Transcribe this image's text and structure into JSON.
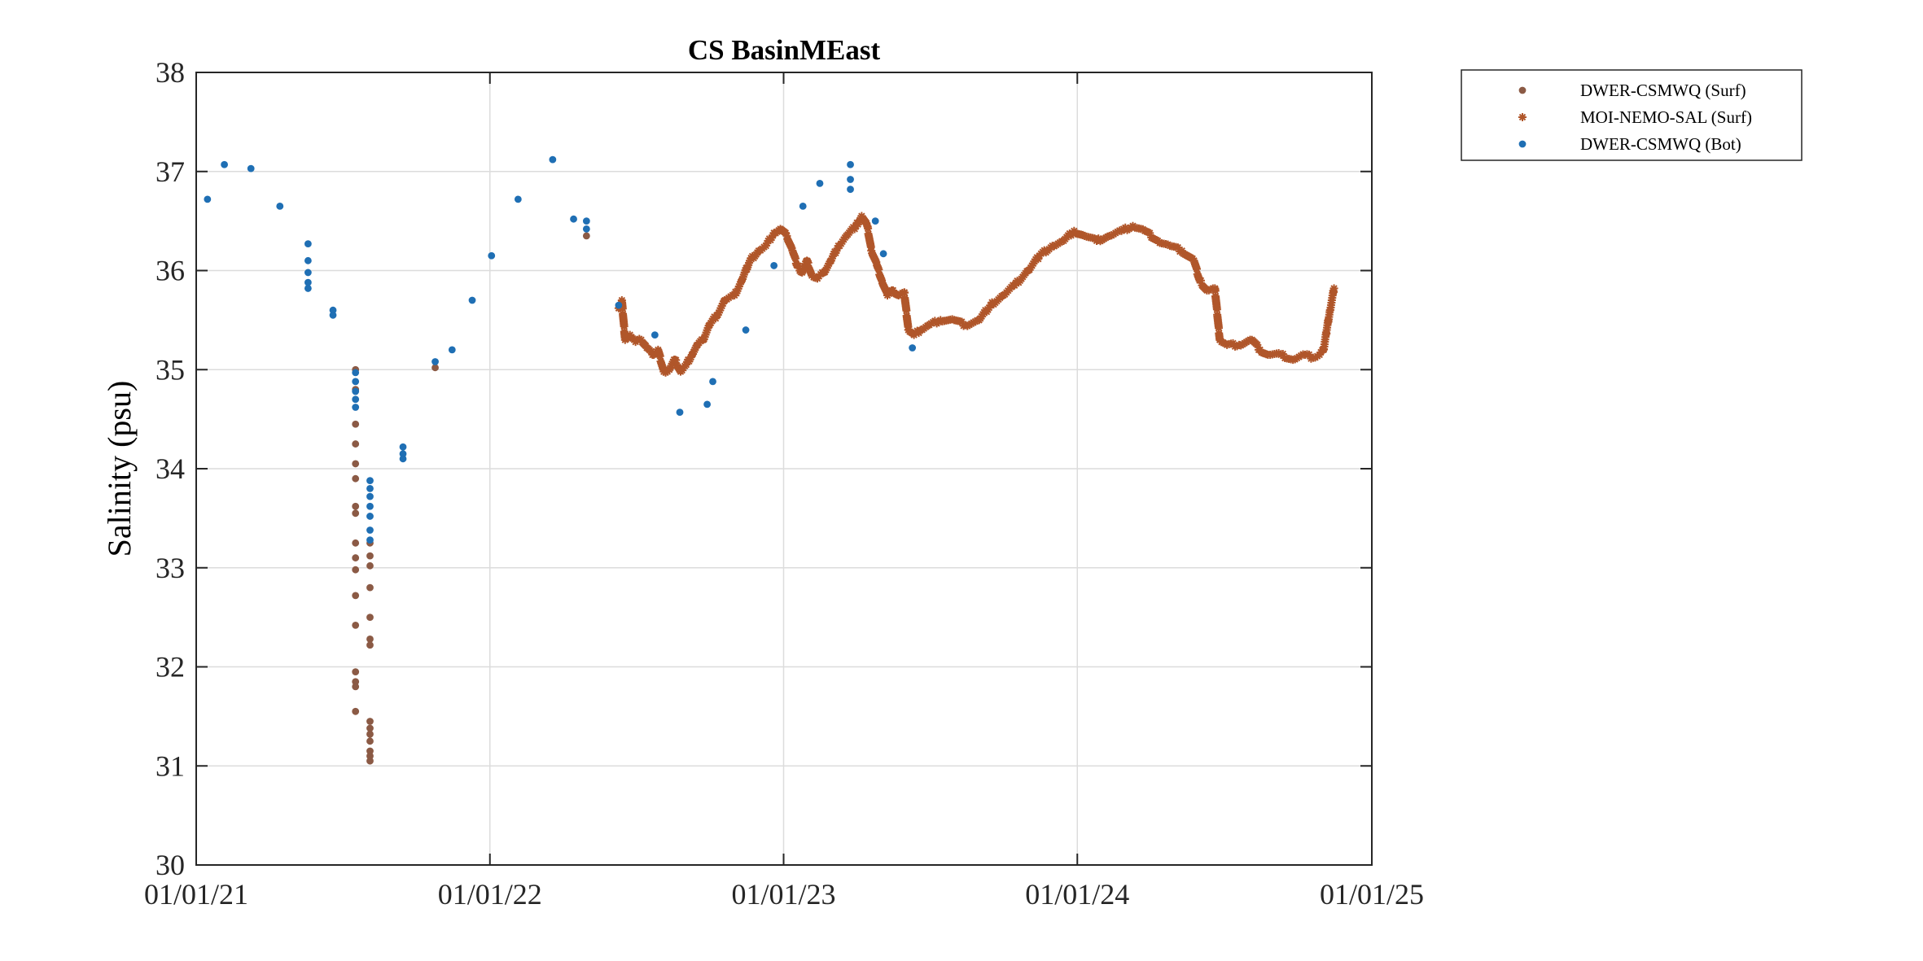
{
  "chart_data": {
    "type": "scatter",
    "title": "CS BasinMEast",
    "xlabel": "",
    "ylabel": "Salinity (psu)",
    "ylim": [
      30,
      38
    ],
    "yticks": [
      30,
      31,
      32,
      33,
      34,
      35,
      36,
      37,
      38
    ],
    "xlim": [
      "2021-01-01",
      "2025-01-01"
    ],
    "xticks": [
      "2021-01-01",
      "2022-01-01",
      "2023-01-01",
      "2024-01-01",
      "2025-01-01"
    ],
    "xtick_labels": [
      "01/01/21",
      "01/01/22",
      "01/01/23",
      "01/01/24",
      "01/01/25"
    ],
    "ytick_labels": [
      "30",
      "31",
      "32",
      "33",
      "34",
      "35",
      "36",
      "37",
      "38"
    ],
    "grid": true,
    "legend_position": "outside-top-right",
    "series": [
      {
        "name": "DWER-CSMWQ (Surf)",
        "marker": "dot",
        "color": "#8B5A45",
        "points": [
          [
            "2021-07-18",
            35.0
          ],
          [
            "2021-07-18",
            34.8
          ],
          [
            "2021-07-18",
            34.45
          ],
          [
            "2021-07-18",
            34.25
          ],
          [
            "2021-07-18",
            34.05
          ],
          [
            "2021-07-18",
            33.9
          ],
          [
            "2021-07-18",
            33.62
          ],
          [
            "2021-07-18",
            33.55
          ],
          [
            "2021-07-18",
            33.25
          ],
          [
            "2021-07-18",
            33.1
          ],
          [
            "2021-07-18",
            32.98
          ],
          [
            "2021-07-18",
            32.72
          ],
          [
            "2021-07-18",
            32.42
          ],
          [
            "2021-07-18",
            31.95
          ],
          [
            "2021-07-18",
            31.85
          ],
          [
            "2021-07-18",
            31.8
          ],
          [
            "2021-07-18",
            31.55
          ],
          [
            "2021-08-05",
            33.25
          ],
          [
            "2021-08-05",
            33.12
          ],
          [
            "2021-08-05",
            33.02
          ],
          [
            "2021-08-05",
            32.8
          ],
          [
            "2021-08-05",
            32.5
          ],
          [
            "2021-08-05",
            32.28
          ],
          [
            "2021-08-05",
            32.22
          ],
          [
            "2021-08-05",
            31.45
          ],
          [
            "2021-08-05",
            31.38
          ],
          [
            "2021-08-05",
            31.32
          ],
          [
            "2021-08-05",
            31.25
          ],
          [
            "2021-08-05",
            31.15
          ],
          [
            "2021-08-05",
            31.1
          ],
          [
            "2021-08-05",
            31.05
          ],
          [
            "2021-10-25",
            35.02
          ],
          [
            "2022-05-01",
            36.35
          ]
        ]
      },
      {
        "name": "MOI-NEMO-SAL (Surf)",
        "marker": "star",
        "color": "#B0562A",
        "points": [
          [
            "2022-06-10",
            35.62
          ],
          [
            "2022-06-14",
            35.7
          ],
          [
            "2022-06-18",
            35.3
          ],
          [
            "2022-06-24",
            35.35
          ],
          [
            "2022-07-01",
            35.28
          ],
          [
            "2022-07-08",
            35.3
          ],
          [
            "2022-07-15",
            35.22
          ],
          [
            "2022-07-22",
            35.15
          ],
          [
            "2022-07-29",
            35.2
          ],
          [
            "2022-08-05",
            34.98
          ],
          [
            "2022-08-12",
            35.0
          ],
          [
            "2022-08-19",
            35.1
          ],
          [
            "2022-08-26",
            34.98
          ],
          [
            "2022-09-02",
            35.05
          ],
          [
            "2022-09-09",
            35.15
          ],
          [
            "2022-09-16",
            35.25
          ],
          [
            "2022-09-23",
            35.3
          ],
          [
            "2022-10-01",
            35.45
          ],
          [
            "2022-10-10",
            35.55
          ],
          [
            "2022-10-20",
            35.7
          ],
          [
            "2022-11-01",
            35.75
          ],
          [
            "2022-11-10",
            35.9
          ],
          [
            "2022-11-20",
            36.1
          ],
          [
            "2022-12-01",
            36.2
          ],
          [
            "2022-12-10",
            36.25
          ],
          [
            "2022-12-20",
            36.38
          ],
          [
            "2022-12-28",
            36.42
          ],
          [
            "2023-01-05",
            36.35
          ],
          [
            "2023-01-12",
            36.2
          ],
          [
            "2023-01-18",
            36.05
          ],
          [
            "2023-01-24",
            35.98
          ],
          [
            "2023-01-30",
            36.1
          ],
          [
            "2023-02-05",
            35.95
          ],
          [
            "2023-02-12",
            35.92
          ],
          [
            "2023-02-20",
            35.98
          ],
          [
            "2023-03-01",
            36.1
          ],
          [
            "2023-03-10",
            36.25
          ],
          [
            "2023-03-20",
            36.35
          ],
          [
            "2023-04-01",
            36.45
          ],
          [
            "2023-04-08",
            36.55
          ],
          [
            "2023-04-15",
            36.45
          ],
          [
            "2023-04-20",
            36.2
          ],
          [
            "2023-04-27",
            36.05
          ],
          [
            "2023-05-03",
            35.9
          ],
          [
            "2023-05-10",
            35.75
          ],
          [
            "2023-05-17",
            35.8
          ],
          [
            "2023-05-24",
            35.75
          ],
          [
            "2023-05-31",
            35.78
          ],
          [
            "2023-06-05",
            35.4
          ],
          [
            "2023-06-12",
            35.35
          ],
          [
            "2023-06-20",
            35.4
          ],
          [
            "2023-07-01",
            35.45
          ],
          [
            "2023-07-15",
            35.5
          ],
          [
            "2023-08-01",
            35.5
          ],
          [
            "2023-08-15",
            35.45
          ],
          [
            "2023-09-01",
            35.5
          ],
          [
            "2023-09-15",
            35.65
          ],
          [
            "2023-10-01",
            35.75
          ],
          [
            "2023-10-15",
            35.85
          ],
          [
            "2023-11-01",
            36.0
          ],
          [
            "2023-11-15",
            36.15
          ],
          [
            "2023-12-01",
            36.25
          ],
          [
            "2023-12-15",
            36.3
          ],
          [
            "2023-12-28",
            36.4
          ],
          [
            "2024-01-10",
            36.35
          ],
          [
            "2024-01-25",
            36.3
          ],
          [
            "2024-02-10",
            36.35
          ],
          [
            "2024-02-25",
            36.4
          ],
          [
            "2024-03-10",
            36.45
          ],
          [
            "2024-03-25",
            36.4
          ],
          [
            "2024-04-10",
            36.3
          ],
          [
            "2024-04-25",
            36.25
          ],
          [
            "2024-05-10",
            36.2
          ],
          [
            "2024-05-25",
            36.1
          ],
          [
            "2024-06-01",
            35.9
          ],
          [
            "2024-06-10",
            35.8
          ],
          [
            "2024-06-20",
            35.82
          ],
          [
            "2024-06-26",
            35.3
          ],
          [
            "2024-07-05",
            35.25
          ],
          [
            "2024-07-20",
            35.25
          ],
          [
            "2024-08-05",
            35.3
          ],
          [
            "2024-08-15",
            35.2
          ],
          [
            "2024-08-25",
            35.15
          ],
          [
            "2024-09-10",
            35.15
          ],
          [
            "2024-09-25",
            35.1
          ],
          [
            "2024-10-10",
            35.15
          ],
          [
            "2024-10-20",
            35.12
          ],
          [
            "2024-10-28",
            35.15
          ],
          [
            "2024-11-02",
            35.2
          ],
          [
            "2024-11-06",
            35.4
          ],
          [
            "2024-11-10",
            35.6
          ],
          [
            "2024-11-15",
            35.82
          ]
        ]
      },
      {
        "name": "DWER-CSMWQ (Bot)",
        "marker": "dot",
        "color": "#1F6FB4",
        "points": [
          [
            "2021-01-15",
            36.72
          ],
          [
            "2021-02-05",
            37.07
          ],
          [
            "2021-03-10",
            37.03
          ],
          [
            "2021-04-15",
            36.65
          ],
          [
            "2021-05-20",
            36.27
          ],
          [
            "2021-05-20",
            36.1
          ],
          [
            "2021-05-20",
            35.98
          ],
          [
            "2021-05-20",
            35.88
          ],
          [
            "2021-05-20",
            35.82
          ],
          [
            "2021-06-20",
            35.6
          ],
          [
            "2021-06-20",
            35.55
          ],
          [
            "2021-07-18",
            34.97
          ],
          [
            "2021-07-18",
            34.88
          ],
          [
            "2021-07-18",
            34.78
          ],
          [
            "2021-07-18",
            34.7
          ],
          [
            "2021-07-18",
            34.62
          ],
          [
            "2021-08-05",
            33.88
          ],
          [
            "2021-08-05",
            33.8
          ],
          [
            "2021-08-05",
            33.72
          ],
          [
            "2021-08-05",
            33.62
          ],
          [
            "2021-08-05",
            33.52
          ],
          [
            "2021-08-05",
            33.38
          ],
          [
            "2021-08-05",
            33.28
          ],
          [
            "2021-09-15",
            34.22
          ],
          [
            "2021-09-15",
            34.15
          ],
          [
            "2021-09-15",
            34.1
          ],
          [
            "2021-10-25",
            35.08
          ],
          [
            "2021-11-15",
            35.2
          ],
          [
            "2021-12-10",
            35.7
          ],
          [
            "2022-01-03",
            36.15
          ],
          [
            "2022-02-05",
            36.72
          ],
          [
            "2022-03-20",
            37.12
          ],
          [
            "2022-04-15",
            36.52
          ],
          [
            "2022-05-01",
            36.5
          ],
          [
            "2022-05-01",
            36.42
          ],
          [
            "2022-06-10",
            35.65
          ],
          [
            "2022-07-25",
            35.35
          ],
          [
            "2022-08-25",
            34.57
          ],
          [
            "2022-09-28",
            34.65
          ],
          [
            "2022-10-05",
            34.88
          ],
          [
            "2022-11-15",
            35.4
          ],
          [
            "2022-12-20",
            36.05
          ],
          [
            "2023-01-25",
            36.65
          ],
          [
            "2023-02-15",
            36.88
          ],
          [
            "2023-03-25",
            37.07
          ],
          [
            "2023-03-25",
            36.92
          ],
          [
            "2023-03-25",
            36.82
          ],
          [
            "2023-04-25",
            36.5
          ],
          [
            "2023-05-05",
            36.17
          ],
          [
            "2023-06-10",
            35.22
          ]
        ]
      }
    ]
  }
}
